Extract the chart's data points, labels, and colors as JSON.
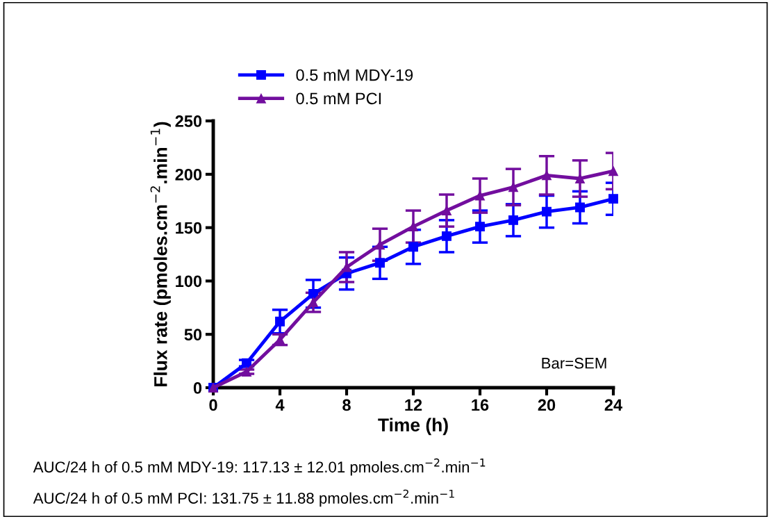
{
  "chart_data": {
    "type": "line",
    "xlabel": "Time (h)",
    "ylabel": "Flux rate (pmoles.cm$^{−2}$.min$^{−1}$)",
    "x": [
      0,
      2,
      4,
      6,
      8,
      10,
      12,
      14,
      16,
      18,
      20,
      22,
      24
    ],
    "series": [
      {
        "name": "0.5 mM MDY-19",
        "color": "#0000ff",
        "marker": "square",
        "values": [
          0,
          23,
          62,
          88,
          107,
          117,
          132,
          142,
          151,
          157,
          165,
          169,
          177
        ],
        "errors": [
          null,
          3,
          11,
          13,
          15,
          15,
          16,
          15,
          15,
          15,
          15,
          15,
          15
        ]
      },
      {
        "name": "0.5 mM PCI",
        "color": "#720e9e",
        "marker": "triangle",
        "values": [
          0,
          15,
          45,
          80,
          113,
          134,
          151,
          166,
          180,
          188,
          199,
          196,
          203
        ],
        "errors": [
          null,
          2,
          5,
          9,
          14,
          15,
          15,
          15,
          16,
          17,
          18,
          17,
          17
        ]
      }
    ],
    "xlim": [
      0,
      24
    ],
    "xticks": [
      0,
      4,
      8,
      12,
      16,
      20,
      24
    ],
    "ylim": [
      0,
      250
    ],
    "yticks": [
      0,
      50,
      100,
      150,
      200,
      250
    ],
    "grid": false,
    "legend": "top left",
    "line_style": "solid",
    "annotations": [
      "Bar=SEM",
      "AUC/24 h of 0.5 mM MDY-19: 117.13 ± 12.01 pmoles.cm$^{−2}$.min$^{−1}$",
      "AUC/24 h of 0.5 mM PCI: 131.75 ± 11.88 pmoles.cm$^{−2}$.min$^{−1}$"
    ]
  }
}
